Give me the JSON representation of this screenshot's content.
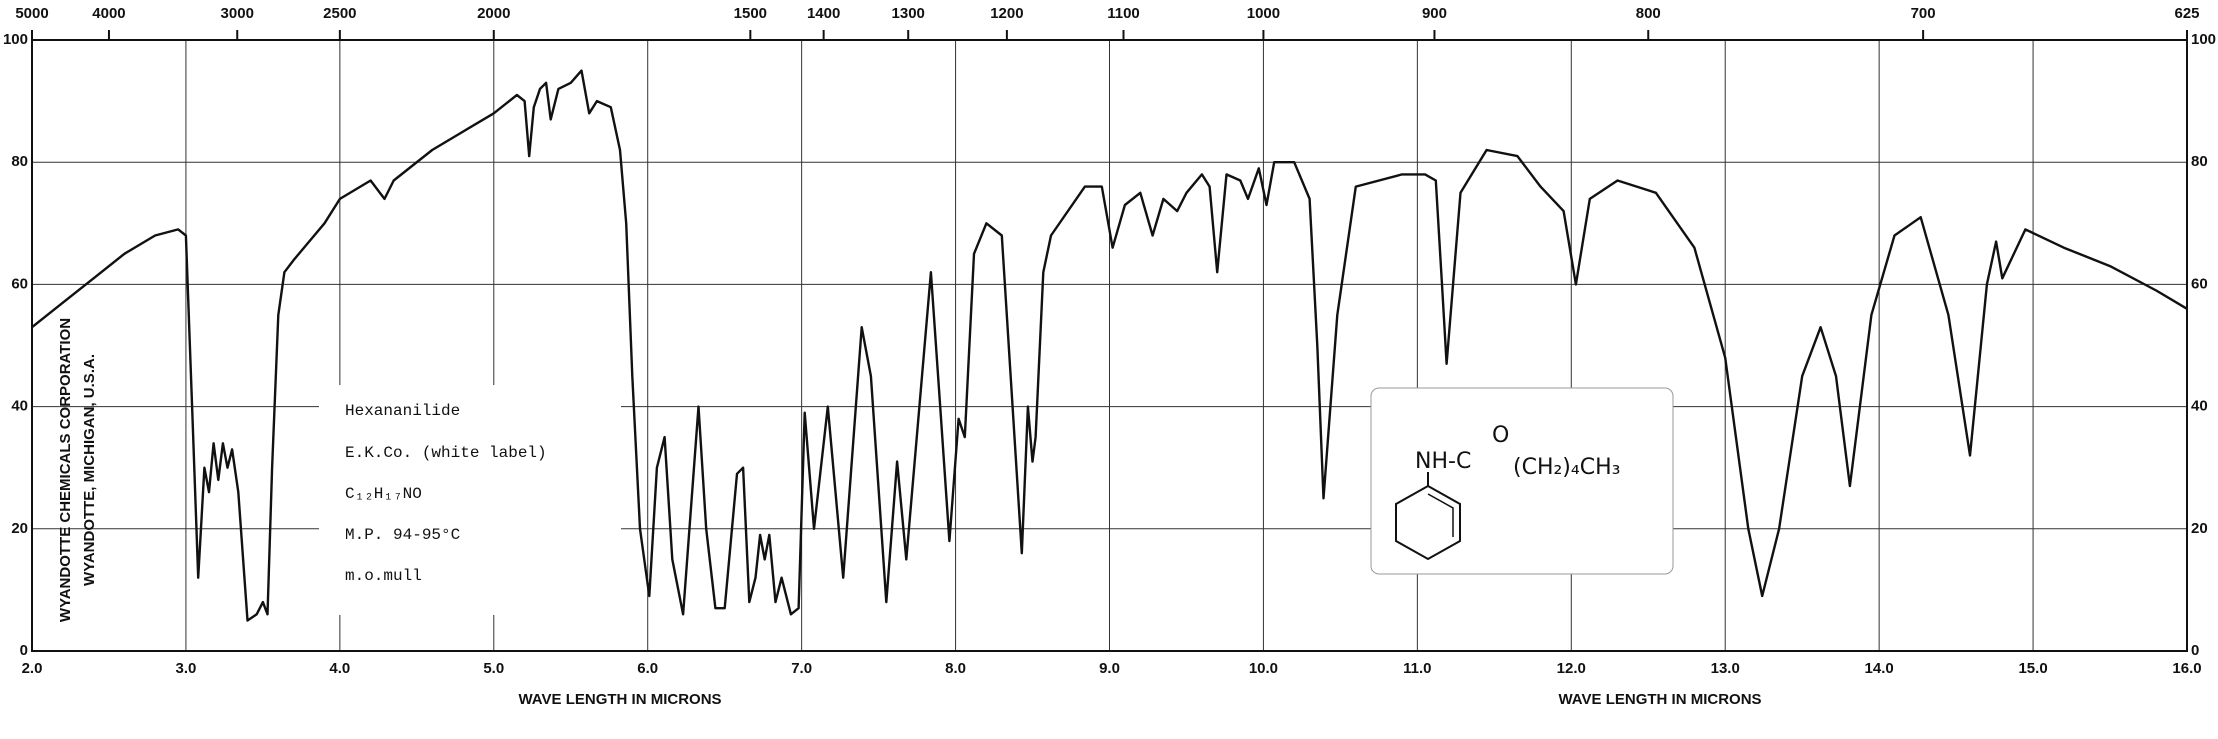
{
  "chart_data": {
    "type": "line",
    "x_label": "WAVE LENGTH IN MICRONS",
    "x_label_2": "WAVE LENGTH IN MICRONS",
    "vertical_texts": [
      "WYANDOTTE CHEMICALS CORPORATION",
      "WYANDOTTE, MICHIGAN, U.S.A."
    ],
    "annotations": [
      "Hexananilide",
      "E.K.Co. (white label)",
      "C₁₂H₁₇NO",
      "M.P. 94-95°C",
      "m.o.mull"
    ],
    "structure": [
      "NH-C",
      "O",
      "(CH₂)₄CH₃"
    ],
    "xlim": [
      2,
      16
    ],
    "ylim": [
      0,
      100
    ],
    "xticks": [
      {
        "value": 2,
        "label": "2.0"
      },
      {
        "value": 3,
        "label": "3.0"
      },
      {
        "value": 4,
        "label": "4.0"
      },
      {
        "value": 5,
        "label": "5.0"
      },
      {
        "value": 6,
        "label": "6.0"
      },
      {
        "value": 7,
        "label": "7.0"
      },
      {
        "value": 8,
        "label": "8.0"
      },
      {
        "value": 9,
        "label": "9.0"
      },
      {
        "value": 10,
        "label": "10.0"
      },
      {
        "value": 11,
        "label": "11.0"
      },
      {
        "value": 12,
        "label": "12.0"
      },
      {
        "value": 13,
        "label": "13.0"
      },
      {
        "value": 14,
        "label": "14.0"
      },
      {
        "value": 15,
        "label": "15.0"
      },
      {
        "value": 16,
        "label": "16.0"
      }
    ],
    "yticks": [
      0,
      20,
      40,
      60,
      80,
      100
    ],
    "x2ticks": [
      5000,
      4000,
      3000,
      2500,
      2000,
      1500,
      1400,
      1300,
      1200,
      1100,
      1000,
      900,
      800,
      700,
      625
    ],
    "grid": true,
    "series": [
      {
        "color": "#111111",
        "x": [
          2.0,
          2.2,
          2.4,
          2.6,
          2.8,
          2.95,
          3.0,
          3.04,
          3.08,
          3.12,
          3.15,
          3.18,
          3.21,
          3.24,
          3.27,
          3.3,
          3.34,
          3.4,
          3.46,
          3.5,
          3.53,
          3.56,
          3.6,
          3.64,
          3.7,
          3.8,
          3.9,
          4.0,
          4.2,
          4.29,
          4.35,
          4.6,
          4.8,
          5.0,
          5.15,
          5.2,
          5.23,
          5.26,
          5.3,
          5.34,
          5.37,
          5.42,
          5.5,
          5.57,
          5.62,
          5.67,
          5.76,
          5.82,
          5.86,
          5.9,
          5.95,
          6.01,
          6.06,
          6.11,
          6.16,
          6.23,
          6.33,
          6.38,
          6.44,
          6.5,
          6.58,
          6.62,
          6.66,
          6.7,
          6.73,
          6.76,
          6.79,
          6.83,
          6.87,
          6.93,
          6.98,
          7.02,
          7.08,
          7.17,
          7.27,
          7.39,
          7.45,
          7.55,
          7.62,
          7.68,
          7.84,
          7.9,
          7.96,
          8.02,
          8.06,
          8.12,
          8.2,
          8.3,
          8.43,
          8.47,
          8.5,
          8.52,
          8.57,
          8.62,
          8.84,
          8.95,
          9.02,
          9.1,
          9.2,
          9.28,
          9.35,
          9.44,
          9.5,
          9.6,
          9.65,
          9.7,
          9.76,
          9.85,
          9.9,
          9.97,
          10.02,
          10.07,
          10.2,
          10.3,
          10.35,
          10.39,
          10.48,
          10.6,
          10.9,
          11.05,
          11.12,
          11.16,
          11.19,
          11.28,
          11.45,
          11.65,
          11.8,
          11.95,
          12.03,
          12.12,
          12.3,
          12.55,
          12.8,
          13.0,
          13.15,
          13.24,
          13.35,
          13.5,
          13.62,
          13.72,
          13.81,
          13.95,
          14.1,
          14.27,
          14.45,
          14.59,
          14.7,
          14.76,
          14.8,
          14.95,
          15.2,
          15.5,
          15.8,
          16.0
        ],
        "values": [
          53,
          57,
          61,
          65,
          68,
          69,
          68,
          40,
          12,
          30,
          26,
          34,
          28,
          34,
          30,
          33,
          26,
          5,
          6,
          8,
          6,
          30,
          55,
          62,
          64,
          67,
          70,
          74,
          77,
          74,
          77,
          82,
          85,
          88,
          91,
          90,
          81,
          89,
          92,
          93,
          87,
          92,
          93,
          95,
          88,
          90,
          89,
          82,
          70,
          45,
          20,
          9,
          30,
          35,
          15,
          6,
          40,
          20,
          7,
          7,
          29,
          30,
          8,
          12,
          19,
          15,
          19,
          8,
          12,
          6,
          7,
          39,
          20,
          40,
          12,
          53,
          45,
          8,
          31,
          15,
          62,
          40,
          18,
          38,
          35,
          65,
          70,
          68,
          16,
          40,
          31,
          35,
          62,
          68,
          76,
          76,
          66,
          73,
          75,
          68,
          74,
          72,
          75,
          78,
          76,
          62,
          78,
          77,
          74,
          79,
          73,
          80,
          80,
          74,
          50,
          25,
          55,
          76,
          78,
          78,
          77,
          60,
          47,
          75,
          82,
          81,
          76,
          72,
          60,
          74,
          77,
          75,
          66,
          48,
          20,
          9,
          20,
          45,
          53,
          45,
          27,
          55,
          68,
          71,
          55,
          32,
          60,
          67,
          61,
          69,
          66,
          63,
          59,
          56
        ]
      }
    ]
  }
}
